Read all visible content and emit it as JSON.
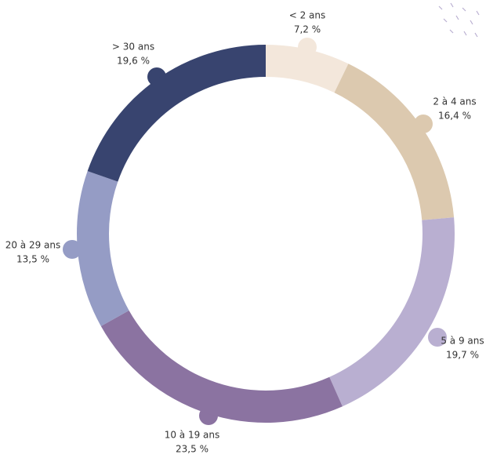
{
  "chart_data": {
    "type": "donut",
    "categories": [
      "< 2 ans",
      "2 à 4 ans",
      "5 à 9 ans",
      "10 à 19 ans",
      "20 à 29 ans",
      "> 30 ans"
    ],
    "values": [
      7.2,
      16.4,
      19.7,
      23.5,
      13.5,
      19.6
    ],
    "value_labels": [
      "7,2 %",
      "16,4 %",
      "19,7 %",
      "23,5 %",
      "13,5 %",
      "19,6 %"
    ],
    "colors": [
      "#f3e7db",
      "#dcc9af",
      "#b9afd1",
      "#8b73a1",
      "#959cc5",
      "#38446f"
    ]
  }
}
